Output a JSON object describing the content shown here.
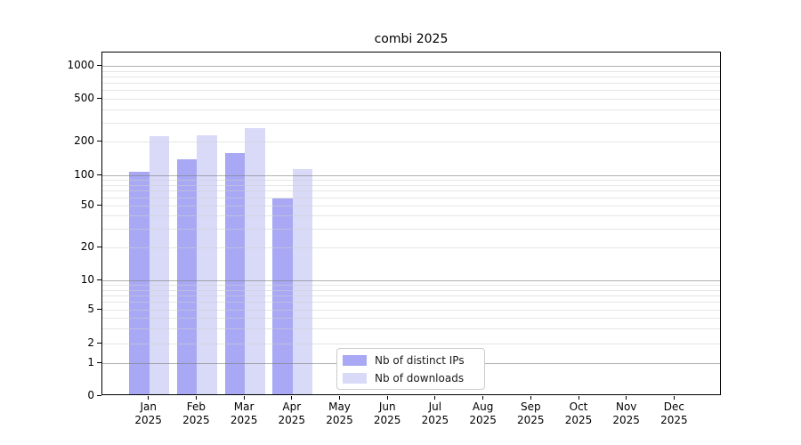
{
  "chart_data": {
    "type": "bar",
    "title": "combi 2025",
    "categories": [
      "Jan",
      "Feb",
      "Mar",
      "Apr",
      "May",
      "Jun",
      "Jul",
      "Aug",
      "Sep",
      "Oct",
      "Nov",
      "Dec"
    ],
    "category_year": "2025",
    "series": [
      {
        "name": "Nb of distinct IPs",
        "color": "#a8a8f4",
        "values": [
          104,
          135,
          152,
          57,
          0,
          0,
          0,
          0,
          0,
          0,
          0,
          0
        ]
      },
      {
        "name": "Nb of downloads",
        "color": "#d9d9f8",
        "values": [
          214,
          222,
          257,
          110,
          0,
          0,
          0,
          0,
          0,
          0,
          0,
          0
        ]
      }
    ],
    "y_scale": "symlog",
    "y_ticks": [
      0,
      1,
      2,
      5,
      10,
      20,
      50,
      100,
      200,
      500,
      1000
    ],
    "ylim": [
      0,
      1350
    ],
    "xlabel": "",
    "ylabel": "",
    "grid": true,
    "legend_position": "lower center"
  }
}
